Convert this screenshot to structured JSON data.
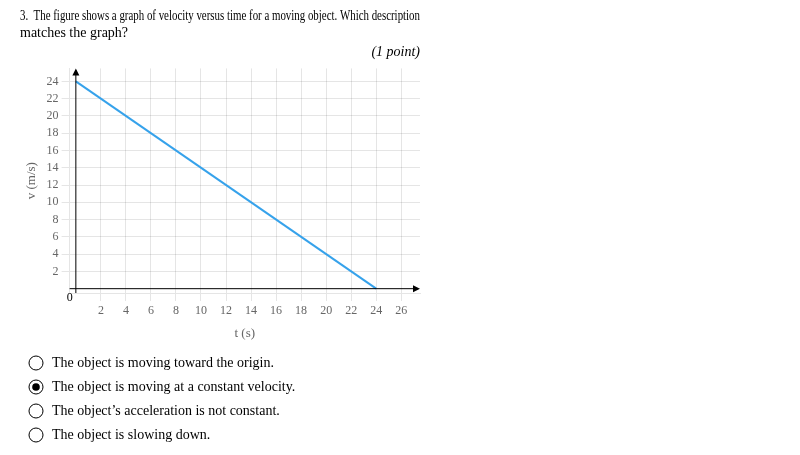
{
  "chart_data": {
    "type": "line",
    "title": [
      "3.  The figure shows a graph of velocity versus time for a moving object. Which description",
      "matches the graph?"
    ],
    "subtitle": "(1 point)",
    "xlabel": "t (s)",
    "ylabel": "v (m/s)",
    "x": [
      0,
      24
    ],
    "values": [
      24,
      0
    ],
    "xlim": [
      -0.5,
      27.5
    ],
    "ylim": [
      -0.5,
      25.5
    ],
    "xticks": [
      2,
      4,
      6,
      8,
      10,
      12,
      14,
      16,
      18,
      20,
      22,
      24,
      26
    ],
    "yticks": [
      2,
      4,
      6,
      8,
      10,
      12,
      14,
      16,
      18,
      20,
      22,
      24
    ],
    "grid": true,
    "annotations": [
      {
        "text": "0",
        "x": 0,
        "y": 0
      }
    ],
    "answer_choices": [
      {
        "text": "The object is moving toward the origin.",
        "selected": false
      },
      {
        "text": "The object is moving at a constant velocity.",
        "selected": true
      },
      {
        "text": "The object’s acceleration is not constant.",
        "selected": false
      },
      {
        "text": "The object is slowing down.",
        "selected": false
      }
    ]
  }
}
